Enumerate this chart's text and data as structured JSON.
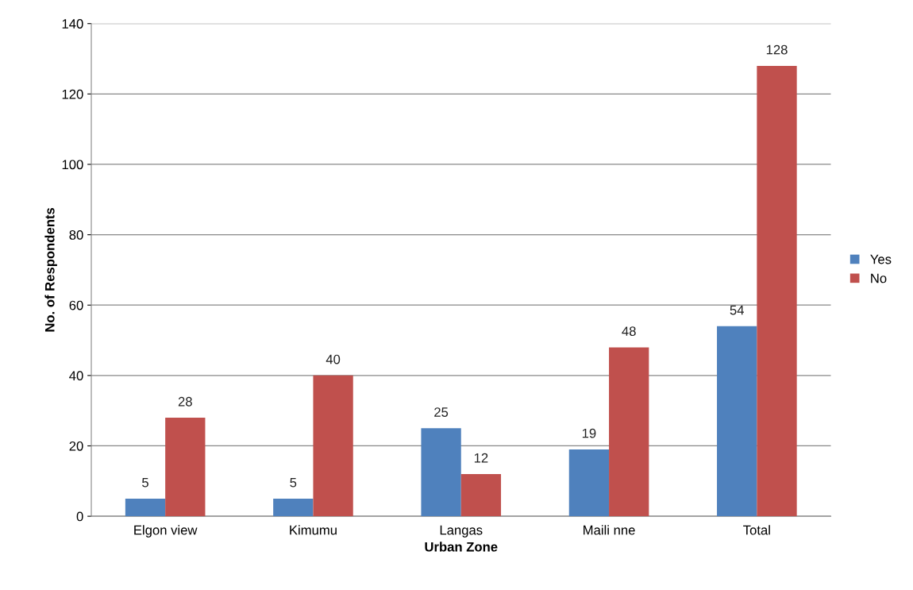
{
  "chart_data": {
    "type": "bar",
    "xlabel": "Urban Zone",
    "ylabel": "No. of Respondents",
    "categories": [
      "Elgon view",
      "Kimumu",
      "Langas",
      "Maili nne",
      "Total"
    ],
    "series": [
      {
        "name": "Yes",
        "color": "#4f81bd",
        "values": [
          5,
          5,
          25,
          19,
          54
        ]
      },
      {
        "name": "No",
        "color": "#c0504d",
        "values": [
          28,
          40,
          12,
          48,
          128
        ]
      }
    ],
    "ylim": [
      0,
      140
    ],
    "yticks": [
      0,
      20,
      40,
      60,
      80,
      100,
      120,
      140
    ],
    "grid": "y",
    "legend": "right",
    "data_labels": true
  }
}
